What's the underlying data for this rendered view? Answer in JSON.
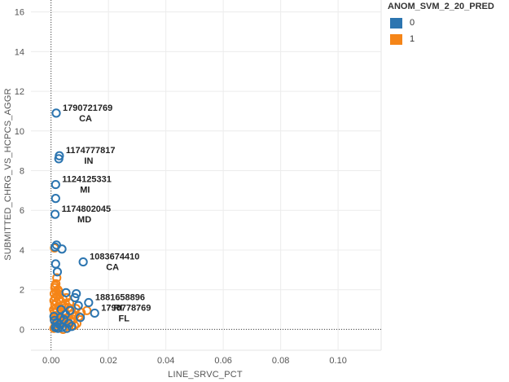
{
  "chart_data": {
    "type": "scatter",
    "xlabel": "LINE_SRVC_PCT",
    "ylabel": "SUBMITTED_CHRG_VS_HCPCS_AGGR",
    "xlim": [
      -0.007,
      0.115
    ],
    "ylim": [
      -1.05,
      16.6
    ],
    "x_ticks": [
      0.0,
      0.02,
      0.04,
      0.06,
      0.08,
      0.1
    ],
    "x_tick_labels": [
      "0.00",
      "0.02",
      "0.04",
      "0.06",
      "0.08",
      "0.10"
    ],
    "y_ticks": [
      0,
      2,
      4,
      6,
      8,
      10,
      12,
      14,
      16
    ],
    "y_tick_labels": [
      "0",
      "2",
      "4",
      "6",
      "8",
      "10",
      "12",
      "14",
      "16"
    ],
    "grid": true,
    "reference_lines": {
      "x": 0,
      "y": 0
    },
    "legend": {
      "title": "ANOM_SVM_2_20_PRED",
      "position": "right",
      "entries": [
        {
          "label": "0",
          "color": "#2C75B0"
        },
        {
          "label": "1",
          "color": "#F58518"
        }
      ]
    },
    "series": [
      {
        "name": "0",
        "color": "#2C75B0",
        "points": [
          [
            0.0018,
            10.9
          ],
          [
            0.0029,
            8.75
          ],
          [
            0.0027,
            8.6
          ],
          [
            0.0016,
            7.3
          ],
          [
            0.0016,
            6.6
          ],
          [
            0.0014,
            5.8
          ],
          [
            0.0019,
            4.25
          ],
          [
            0.0038,
            4.05
          ],
          [
            0.0014,
            4.15
          ],
          [
            0.0112,
            3.4
          ],
          [
            0.0016,
            3.3
          ],
          [
            0.0022,
            2.9
          ],
          [
            0.0088,
            1.8
          ],
          [
            0.0052,
            1.85
          ],
          [
            0.0131,
            1.35
          ],
          [
            0.0083,
            1.6
          ],
          [
            0.0152,
            0.82
          ],
          [
            0.0102,
            0.6
          ],
          [
            0.0066,
            0.95
          ],
          [
            0.0095,
            1.2
          ],
          [
            0.0062,
            0.3
          ],
          [
            0.0072,
            0.15
          ],
          [
            0.0055,
            0.05
          ],
          [
            0.0039,
            0.1
          ],
          [
            0.0029,
            0.25
          ],
          [
            0.002,
            0.35
          ],
          [
            0.0012,
            0.45
          ],
          [
            0.0019,
            0.15
          ],
          [
            0.0033,
            0.6
          ],
          [
            0.0045,
            0.5
          ],
          [
            0.0015,
            0.1
          ],
          [
            0.0024,
            0.05
          ],
          [
            0.005,
            0.75
          ],
          [
            0.001,
            0.65
          ],
          [
            0.0035,
            1.0
          ]
        ]
      },
      {
        "name": "1",
        "color": "#F58518",
        "points": [
          [
            0.0012,
            4.1
          ],
          [
            0.002,
            2.6
          ],
          [
            0.0017,
            2.3
          ],
          [
            0.0013,
            2.1
          ],
          [
            0.0024,
            2.0
          ],
          [
            0.0018,
            1.9
          ],
          [
            0.0011,
            1.8
          ],
          [
            0.003,
            1.75
          ],
          [
            0.0022,
            1.7
          ],
          [
            0.0015,
            1.6
          ],
          [
            0.0041,
            1.55
          ],
          [
            0.0027,
            1.5
          ],
          [
            0.001,
            1.45
          ],
          [
            0.0035,
            1.4
          ],
          [
            0.0019,
            1.35
          ],
          [
            0.005,
            1.3
          ],
          [
            0.0013,
            1.25
          ],
          [
            0.0044,
            1.2
          ],
          [
            0.0026,
            1.15
          ],
          [
            0.006,
            1.1
          ],
          [
            0.0016,
            1.05
          ],
          [
            0.0033,
            1.0
          ],
          [
            0.0071,
            0.95
          ],
          [
            0.0021,
            0.9
          ],
          [
            0.0012,
            0.85
          ],
          [
            0.0048,
            0.8
          ],
          [
            0.0029,
            0.75
          ],
          [
            0.0083,
            0.7
          ],
          [
            0.0017,
            0.65
          ],
          [
            0.0056,
            0.6
          ],
          [
            0.0038,
            0.55
          ],
          [
            0.0011,
            0.5
          ],
          [
            0.0068,
            0.45
          ],
          [
            0.0024,
            0.4
          ],
          [
            0.0045,
            0.35
          ],
          [
            0.009,
            0.3
          ],
          [
            0.0015,
            0.25
          ],
          [
            0.0032,
            0.2
          ],
          [
            0.0062,
            0.15
          ],
          [
            0.002,
            0.1
          ],
          [
            0.001,
            0.05
          ],
          [
            0.0042,
            0.0
          ],
          [
            0.0078,
            0.5
          ],
          [
            0.0097,
            0.65
          ],
          [
            0.0125,
            0.95
          ],
          [
            0.0105,
            0.85
          ],
          [
            0.0087,
            1.05
          ],
          [
            0.0065,
            1.35
          ],
          [
            0.0054,
            1.6
          ],
          [
            0.0028,
            1.9
          ],
          [
            0.0014,
            2.2
          ],
          [
            0.0036,
            1.2
          ],
          [
            0.0074,
            0.75
          ],
          [
            0.0023,
            0.6
          ],
          [
            0.0009,
            1.0
          ],
          [
            0.0047,
            0.9
          ],
          [
            0.0059,
            0.4
          ],
          [
            0.0031,
            0.3
          ],
          [
            0.0018,
            0.7
          ],
          [
            0.0082,
            0.2
          ]
        ]
      }
    ],
    "annotations": [
      {
        "id": "1790721769",
        "state": "CA",
        "x": 0.0018,
        "y": 10.9
      },
      {
        "id": "1174777817",
        "state": "IN",
        "x": 0.0029,
        "y": 8.75
      },
      {
        "id": "1124125331",
        "state": "MI",
        "x": 0.0016,
        "y": 7.3
      },
      {
        "id": "1174802045",
        "state": "MD",
        "x": 0.0014,
        "y": 5.8
      },
      {
        "id": "1083674410",
        "state": "CA",
        "x": 0.0112,
        "y": 3.4
      },
      {
        "id": "1881658896",
        "state": "RI",
        "x": 0.0131,
        "y": 1.35
      },
      {
        "id": "1790778769",
        "state": "FL",
        "x": 0.0152,
        "y": 0.82
      }
    ]
  }
}
